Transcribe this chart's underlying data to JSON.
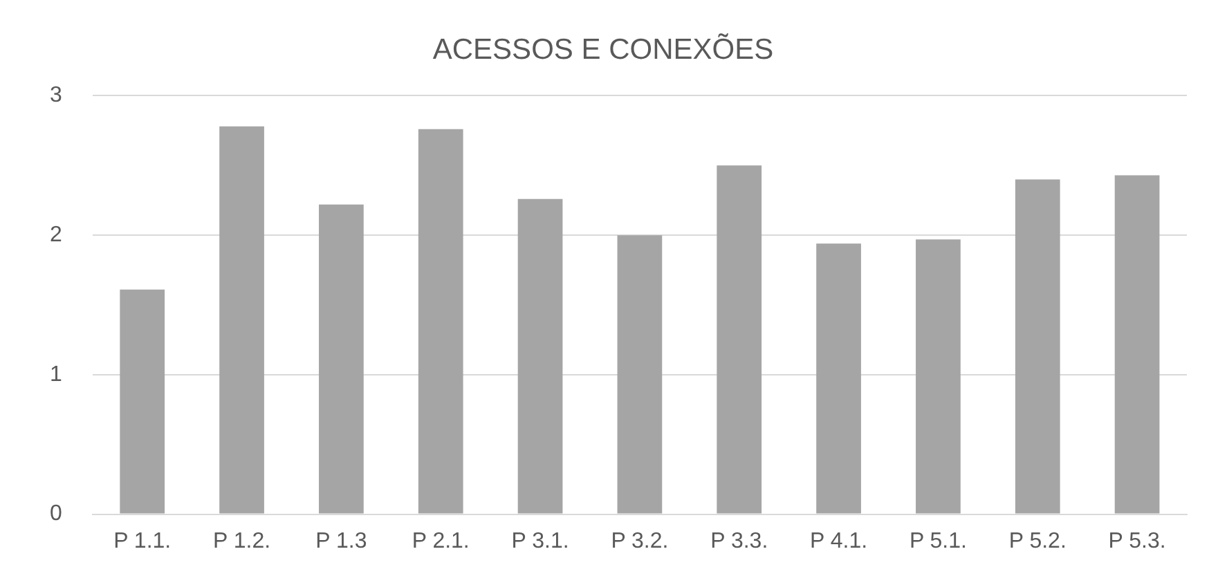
{
  "chart_data": {
    "type": "bar",
    "title": "ACESSOS E CONEXÕES",
    "categories": [
      "P 1.1.",
      "P 1.2.",
      "P 1.3",
      "P 2.1.",
      "P 3.1.",
      "P 3.2.",
      "P 3.3.",
      "P 4.1.",
      "P 5.1.",
      "P 5.2.",
      "P 5.3."
    ],
    "values": [
      1.61,
      2.78,
      2.22,
      2.76,
      2.26,
      2.0,
      2.5,
      1.94,
      1.97,
      2.4,
      2.43
    ],
    "color": "#a5a5a5",
    "ylim": [
      0,
      3
    ],
    "yticks": [
      0,
      1,
      2,
      3
    ],
    "grid": "y"
  }
}
